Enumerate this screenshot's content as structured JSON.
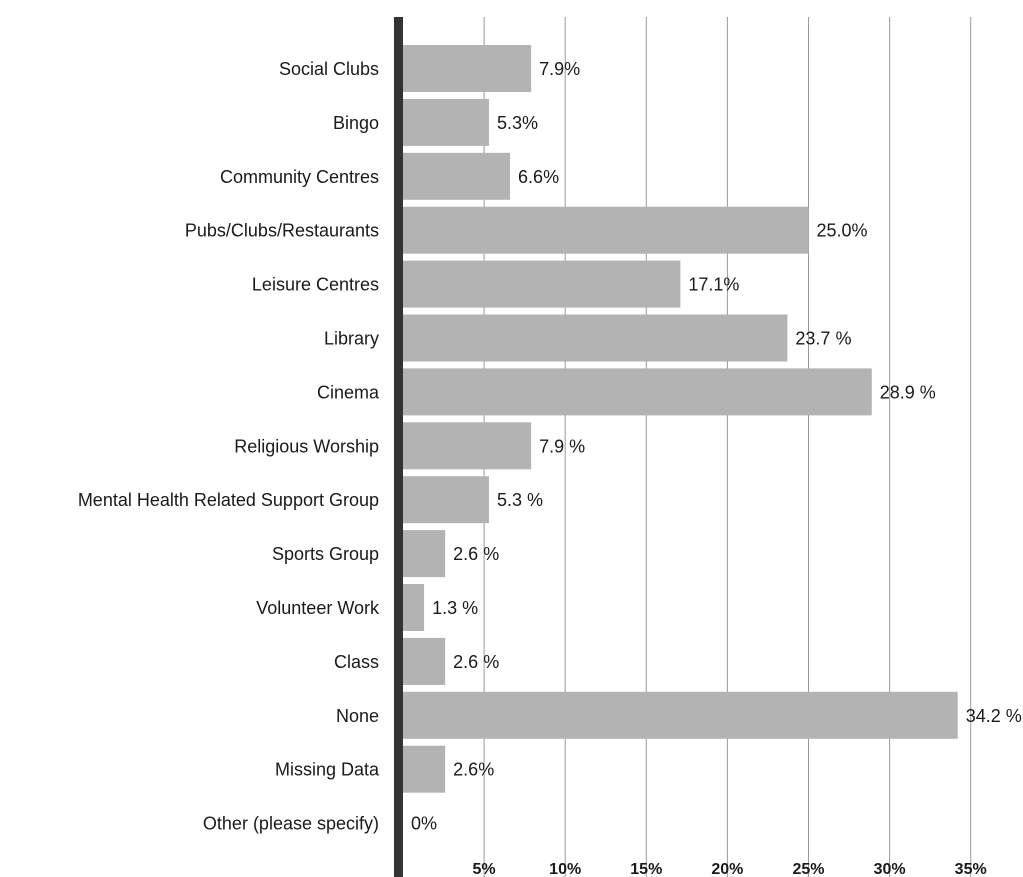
{
  "chart_data": {
    "type": "bar",
    "orientation": "horizontal",
    "title": "",
    "xlabel": "",
    "ylabel": "",
    "categories": [
      "Social Clubs",
      "Bingo",
      "Community Centres",
      "Pubs/Clubs/Restaurants",
      "Leisure Centres",
      "Library",
      "Cinema",
      "Religious Worship",
      "Mental Health Related Support Group",
      "Sports Group",
      "Volunteer Work",
      "Class",
      "None",
      "Missing Data",
      "Other (please specify)"
    ],
    "values": [
      7.9,
      5.3,
      6.6,
      25.0,
      17.1,
      23.7,
      28.9,
      7.9,
      5.3,
      2.6,
      1.3,
      2.6,
      34.2,
      2.6,
      0
    ],
    "data_labels": [
      "7.9%",
      "5.3%",
      "6.6%",
      "25.0%",
      "17.1%",
      "23.7 %",
      "28.9 %",
      "7.9 %",
      "5.3 %",
      "2.6 %",
      "1.3 %",
      "2.6 %",
      "34.2 %",
      "2.6%",
      "0%"
    ],
    "x_ticks": [
      5,
      10,
      15,
      20,
      25,
      30,
      35
    ],
    "x_tick_labels": [
      "5%",
      "10%",
      "15%",
      "20%",
      "25%",
      "30%",
      "35%"
    ],
    "xlim": [
      0,
      35
    ],
    "grid": true,
    "legend": "none",
    "colors": {
      "bar": "#b3b3b3",
      "axis": "#333333",
      "grid": "#9a9a9a",
      "text": "#1a1a1a"
    }
  }
}
